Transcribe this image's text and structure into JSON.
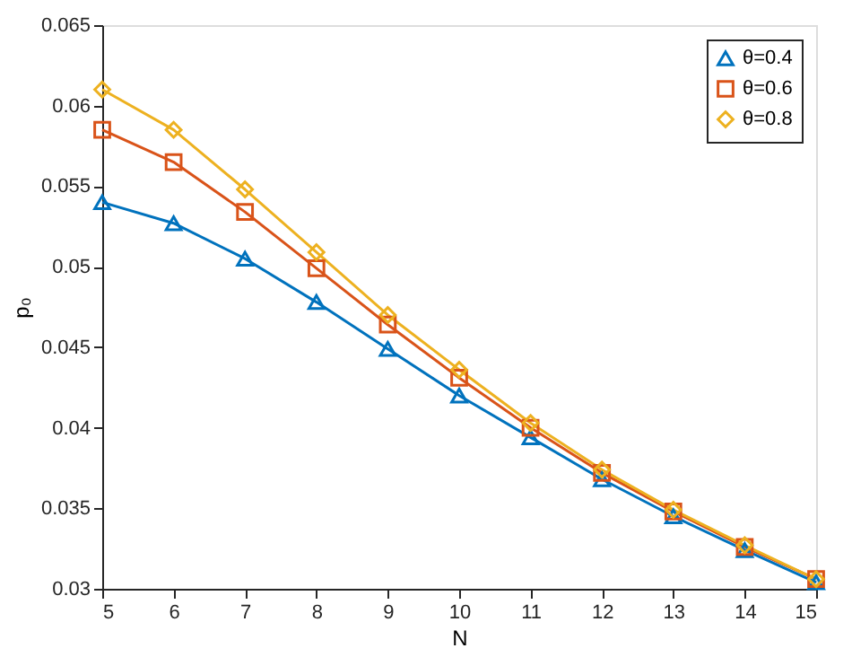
{
  "chart_data": {
    "type": "line",
    "xlabel": "N",
    "ylabel": "p₀",
    "x": [
      5,
      6,
      7,
      8,
      9,
      10,
      11,
      12,
      13,
      14,
      15
    ],
    "series": [
      {
        "name": "θ=0.4",
        "color": "#0072bd",
        "marker": "triangle",
        "values": [
          0.054,
          0.0527,
          0.0505,
          0.0478,
          0.0449,
          0.042,
          0.0394,
          0.0368,
          0.0345,
          0.0324,
          0.0304
        ]
      },
      {
        "name": "θ=0.6",
        "color": "#d95319",
        "marker": "square",
        "values": [
          0.0585,
          0.0565,
          0.0534,
          0.0499,
          0.0464,
          0.0431,
          0.04,
          0.0372,
          0.0348,
          0.0326,
          0.0306
        ]
      },
      {
        "name": "θ=0.8",
        "color": "#edb120",
        "marker": "diamond",
        "values": [
          0.061,
          0.0585,
          0.0548,
          0.0509,
          0.047,
          0.0436,
          0.0403,
          0.0374,
          0.0349,
          0.0327,
          0.0306
        ]
      }
    ],
    "xlim": [
      5,
      15
    ],
    "xticks": [
      5,
      6,
      7,
      8,
      9,
      10,
      11,
      12,
      13,
      14,
      15
    ],
    "ylim": [
      0.03,
      0.065
    ],
    "yticks": [
      0.03,
      0.035,
      0.04,
      0.045,
      0.05,
      0.055,
      0.06,
      0.065
    ],
    "grid": false,
    "legend": "top right"
  }
}
